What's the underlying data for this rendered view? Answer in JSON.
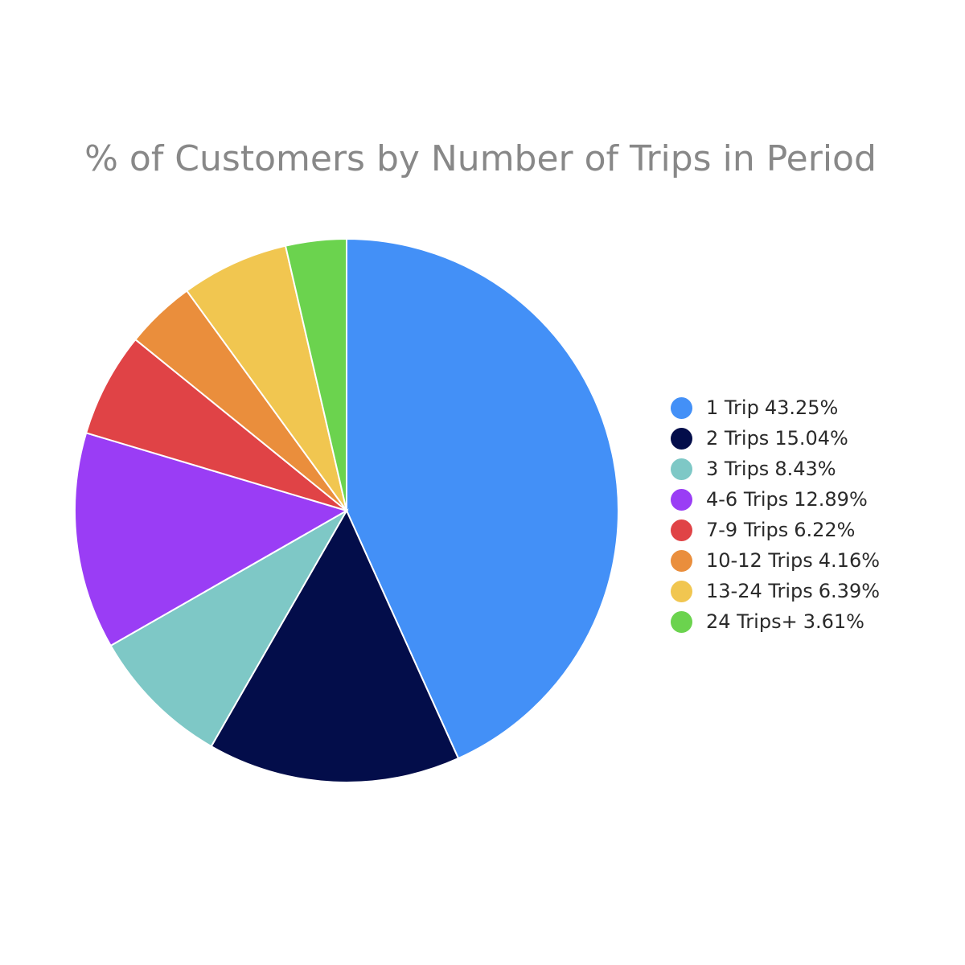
{
  "chart_data": {
    "type": "pie",
    "title": "% of Customers by Number of Trips in Period",
    "slices": [
      {
        "label": "1 Trip",
        "value": 43.25,
        "value_text": "43.25%",
        "color": "#4390F7"
      },
      {
        "label": "2 Trips",
        "value": 15.04,
        "value_text": "15.04%",
        "color": "#030D4A"
      },
      {
        "label": "3 Trips",
        "value": 8.43,
        "value_text": "8.43%",
        "color": "#7EC8C6"
      },
      {
        "label": "4-6 Trips",
        "value": 12.89,
        "value_text": "12.89%",
        "color": "#9A3DF5"
      },
      {
        "label": "7-9 Trips",
        "value": 6.22,
        "value_text": "6.22%",
        "color": "#E04346"
      },
      {
        "label": "10-12 Trips",
        "value": 4.16,
        "value_text": "4.16%",
        "color": "#EA8E3C"
      },
      {
        "label": "13-24 Trips",
        "value": 6.39,
        "value_text": "6.39%",
        "color": "#F1C650"
      },
      {
        "label": "24 Trips+",
        "value": 3.61,
        "value_text": "3.61%",
        "color": "#6BD34E"
      }
    ],
    "direction": "clockwise",
    "start": "top",
    "legend_position": "right"
  }
}
